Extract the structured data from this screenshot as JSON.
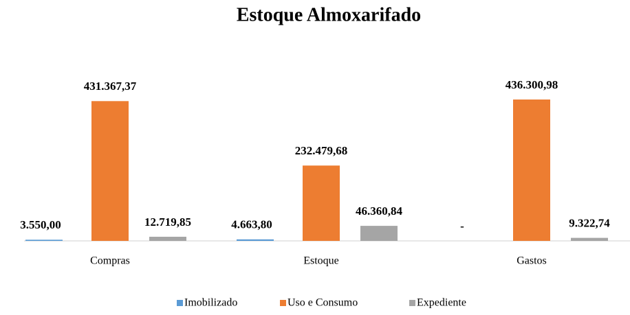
{
  "chart_data": {
    "type": "bar",
    "title": "Estoque Almoxarifado",
    "categories": [
      "Compras",
      "Estoque",
      "Gastos"
    ],
    "series": [
      {
        "name": "Imobilizado",
        "color": "#5b9bd5",
        "values": [
          3550.0,
          4663.8,
          0
        ],
        "value_labels": [
          "3.550,00",
          "4.663,80",
          "-"
        ]
      },
      {
        "name": "Uso e Consumo",
        "color": "#ed7d31",
        "values": [
          431367.37,
          232479.68,
          436300.98
        ],
        "value_labels": [
          "431.367,37",
          "232.479,68",
          "436.300,98"
        ]
      },
      {
        "name": "Expediente",
        "color": "#a5a5a5",
        "values": [
          12719.85,
          46360.84,
          9322.74
        ],
        "value_labels": [
          "12.719,85",
          "46.360,84",
          "9.322,74"
        ]
      }
    ]
  }
}
